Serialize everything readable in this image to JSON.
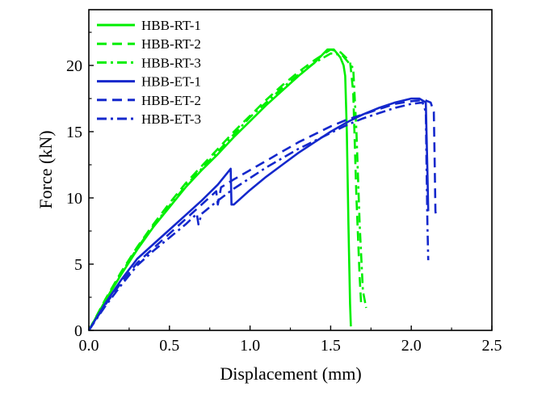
{
  "chart_data": {
    "type": "line",
    "title": "",
    "xlabel": "Displacement (mm)",
    "ylabel": "Force (kN)",
    "xlim": [
      0,
      2.5
    ],
    "ylim": [
      0,
      24
    ],
    "x_ticks": [
      0.0,
      0.5,
      1.0,
      1.5,
      2.0,
      2.5
    ],
    "x_tick_labels": [
      "0.0",
      "0.5",
      "1.0",
      "1.5",
      "2.0",
      "2.5"
    ],
    "y_ticks": [
      0,
      5,
      10,
      15,
      20
    ],
    "y_tick_labels": [
      "0",
      "5",
      "10",
      "15",
      "20"
    ],
    "grid": false,
    "legend_position": "top-left",
    "series": [
      {
        "name": "HBB-RT-1",
        "color": "#00ee00",
        "style": "solid",
        "points": [
          [
            0,
            0
          ],
          [
            0.1,
            2.2
          ],
          [
            0.2,
            4.2
          ],
          [
            0.3,
            6.1
          ],
          [
            0.4,
            7.8
          ],
          [
            0.5,
            9.3
          ],
          [
            0.6,
            10.8
          ],
          [
            0.7,
            12.1
          ],
          [
            0.8,
            13.3
          ],
          [
            0.9,
            14.6
          ],
          [
            1.0,
            15.8
          ],
          [
            1.1,
            17.0
          ],
          [
            1.2,
            18.1
          ],
          [
            1.3,
            19.2
          ],
          [
            1.4,
            20.2
          ],
          [
            1.48,
            21.2
          ],
          [
            1.52,
            21.2
          ],
          [
            1.56,
            20.6
          ],
          [
            1.58,
            20.0
          ],
          [
            1.59,
            19.2
          ],
          [
            1.6,
            15.0
          ],
          [
            1.61,
            8.0
          ],
          [
            1.62,
            2.0
          ],
          [
            1.625,
            0.3
          ]
        ]
      },
      {
        "name": "HBB-RT-2",
        "color": "#00ee00",
        "style": "dashed",
        "points": [
          [
            0,
            0
          ],
          [
            0.1,
            2.3
          ],
          [
            0.2,
            4.4
          ],
          [
            0.3,
            6.3
          ],
          [
            0.4,
            8.0
          ],
          [
            0.5,
            9.6
          ],
          [
            0.6,
            11.1
          ],
          [
            0.7,
            12.4
          ],
          [
            0.8,
            13.7
          ],
          [
            0.9,
            15.0
          ],
          [
            1.0,
            16.2
          ],
          [
            1.1,
            17.4
          ],
          [
            1.2,
            18.5
          ],
          [
            1.3,
            19.5
          ],
          [
            1.4,
            20.4
          ],
          [
            1.5,
            21.2
          ],
          [
            1.56,
            21.0
          ],
          [
            1.62,
            20.3
          ],
          [
            1.64,
            18.0
          ],
          [
            1.66,
            10.0
          ],
          [
            1.68,
            4.0
          ],
          [
            1.69,
            1.8
          ]
        ]
      },
      {
        "name": "HBB-RT-3",
        "color": "#00ee00",
        "style": "dashdot",
        "points": [
          [
            0,
            0
          ],
          [
            0.1,
            2.2
          ],
          [
            0.2,
            4.3
          ],
          [
            0.3,
            6.2
          ],
          [
            0.4,
            7.9
          ],
          [
            0.5,
            9.4
          ],
          [
            0.6,
            10.9
          ],
          [
            0.7,
            12.2
          ],
          [
            0.8,
            13.5
          ],
          [
            0.9,
            14.8
          ],
          [
            1.0,
            16.1
          ],
          [
            1.1,
            17.2
          ],
          [
            1.2,
            18.3
          ],
          [
            1.3,
            19.3
          ],
          [
            1.4,
            20.2
          ],
          [
            1.5,
            20.9
          ],
          [
            1.57,
            20.8
          ],
          [
            1.64,
            19.8
          ],
          [
            1.66,
            15.0
          ],
          [
            1.68,
            8.0
          ],
          [
            1.7,
            3.0
          ],
          [
            1.72,
            1.7
          ]
        ]
      },
      {
        "name": "HBB-ET-1",
        "color": "#1428cc",
        "style": "solid",
        "points": [
          [
            0,
            0
          ],
          [
            0.1,
            2.0
          ],
          [
            0.2,
            3.8
          ],
          [
            0.3,
            5.4
          ],
          [
            0.4,
            6.5
          ],
          [
            0.5,
            7.6
          ],
          [
            0.6,
            8.7
          ],
          [
            0.7,
            9.8
          ],
          [
            0.8,
            11.0
          ],
          [
            0.88,
            12.2
          ],
          [
            0.885,
            9.5
          ],
          [
            0.9,
            9.5
          ],
          [
            1.0,
            10.6
          ],
          [
            1.1,
            11.6
          ],
          [
            1.2,
            12.5
          ],
          [
            1.3,
            13.4
          ],
          [
            1.4,
            14.2
          ],
          [
            1.5,
            15.0
          ],
          [
            1.6,
            15.7
          ],
          [
            1.7,
            16.3
          ],
          [
            1.8,
            16.8
          ],
          [
            1.9,
            17.2
          ],
          [
            2.0,
            17.5
          ],
          [
            2.05,
            17.5
          ],
          [
            2.09,
            17.2
          ],
          [
            2.1,
            12.0
          ],
          [
            2.105,
            9.0
          ]
        ]
      },
      {
        "name": "HBB-ET-2",
        "color": "#1428cc",
        "style": "dashed",
        "points": [
          [
            0,
            0
          ],
          [
            0.1,
            1.9
          ],
          [
            0.2,
            3.6
          ],
          [
            0.3,
            5.1
          ],
          [
            0.4,
            6.2
          ],
          [
            0.5,
            7.3
          ],
          [
            0.6,
            8.4
          ],
          [
            0.7,
            9.5
          ],
          [
            0.79,
            10.5
          ],
          [
            0.8,
            9.5
          ],
          [
            0.82,
            10.8
          ],
          [
            0.9,
            11.4
          ],
          [
            1.0,
            12.1
          ],
          [
            1.1,
            12.8
          ],
          [
            1.2,
            13.5
          ],
          [
            1.3,
            14.2
          ],
          [
            1.4,
            14.8
          ],
          [
            1.5,
            15.4
          ],
          [
            1.6,
            15.9
          ],
          [
            1.7,
            16.3
          ],
          [
            1.8,
            16.7
          ],
          [
            1.9,
            17.1
          ],
          [
            2.0,
            17.3
          ],
          [
            2.08,
            17.4
          ],
          [
            2.12,
            17.2
          ],
          [
            2.14,
            16.5
          ],
          [
            2.145,
            13.0
          ],
          [
            2.15,
            9.0
          ],
          [
            2.155,
            8.5
          ]
        ]
      },
      {
        "name": "HBB-ET-3",
        "color": "#1428cc",
        "style": "dashdot",
        "points": [
          [
            0,
            0
          ],
          [
            0.1,
            1.8
          ],
          [
            0.2,
            3.4
          ],
          [
            0.3,
            4.9
          ],
          [
            0.4,
            6.0
          ],
          [
            0.5,
            7.0
          ],
          [
            0.6,
            8.0
          ],
          [
            0.67,
            8.8
          ],
          [
            0.68,
            8.0
          ],
          [
            0.7,
            8.8
          ],
          [
            0.8,
            9.8
          ],
          [
            0.9,
            10.7
          ],
          [
            1.0,
            11.5
          ],
          [
            1.1,
            12.3
          ],
          [
            1.2,
            13.0
          ],
          [
            1.3,
            13.7
          ],
          [
            1.4,
            14.3
          ],
          [
            1.5,
            14.9
          ],
          [
            1.6,
            15.5
          ],
          [
            1.7,
            16.0
          ],
          [
            1.8,
            16.4
          ],
          [
            1.9,
            16.8
          ],
          [
            2.0,
            17.1
          ],
          [
            2.07,
            17.2
          ],
          [
            2.09,
            16.5
          ],
          [
            2.095,
            12.0
          ],
          [
            2.1,
            8.0
          ],
          [
            2.105,
            5.3
          ]
        ]
      }
    ]
  }
}
